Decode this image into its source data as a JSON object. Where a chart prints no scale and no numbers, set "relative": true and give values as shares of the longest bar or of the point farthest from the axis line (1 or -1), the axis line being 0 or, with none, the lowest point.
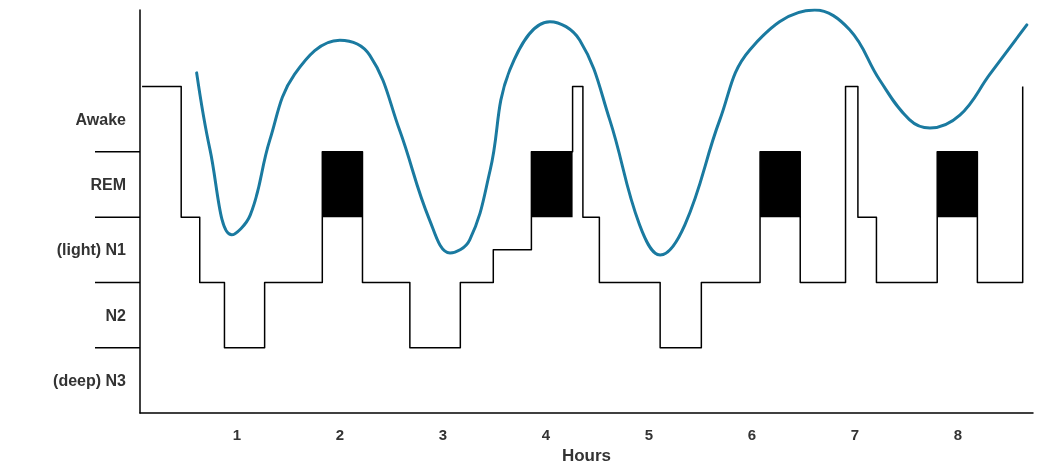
{
  "chart_data": {
    "type": "step",
    "xlabel": "Hours",
    "relative": true,
    "xlim": [
      0.06,
      8.73
    ],
    "xticks": [
      1,
      2,
      3,
      4,
      5,
      6,
      7,
      8
    ],
    "annotations": [
      "(deep) N3",
      "N2",
      "(light) N1",
      "REM",
      "Awake"
    ],
    "bands": [
      {
        "axis": "x",
        "from": 1.83,
        "to": 2.22,
        "color": "#000000"
      },
      {
        "axis": "x",
        "from": 3.86,
        "to": 4.26,
        "color": "#000000"
      },
      {
        "axis": "x",
        "from": 6.08,
        "to": 6.47,
        "color": "#000000"
      },
      {
        "axis": "x",
        "from": 7.8,
        "to": 8.19,
        "color": "#000000"
      }
    ],
    "grid": false,
    "line_style": "solid",
    "series": [
      {
        "color": "#000000",
        "x": [
          0.08,
          0.46,
          0.64,
          0.88,
          1.27,
          1.83,
          2.22,
          2.68,
          3.17,
          3.49,
          3.86,
          4.26,
          4.36,
          4.52,
          5.11,
          5.51,
          6.08,
          6.47,
          6.91,
          7.03,
          7.21,
          7.8,
          8.19,
          8.63
        ],
        "values": [
          0.81,
          0.486,
          0.324,
          0.162,
          0.324,
          0.648,
          0.324,
          0.162,
          0.324,
          0.405,
          0.648,
          0.81,
          0.486,
          0.324,
          0.162,
          0.324,
          0.648,
          0.324,
          0.81,
          0.486,
          0.324,
          0.648,
          0.324,
          0.81
        ]
      },
      {
        "type": "line",
        "color": "#1a7aa0",
        "x": [
          0.61,
          0.74,
          0.95,
          1.13,
          1.32,
          1.56,
          2.0,
          2.29,
          2.58,
          2.87,
          3.07,
          3.26,
          3.46,
          3.65,
          4.04,
          4.33,
          4.62,
          4.91,
          5.11,
          5.35,
          5.69,
          5.98,
          6.61,
          6.95,
          7.24,
          7.53,
          7.73,
          8.02,
          8.31,
          8.67
        ],
        "values": [
          0.844,
          0.653,
          0.442,
          0.491,
          0.677,
          0.84,
          0.925,
          0.888,
          0.702,
          0.48,
          0.397,
          0.429,
          0.603,
          0.851,
          0.971,
          0.925,
          0.728,
          0.467,
          0.392,
          0.467,
          0.728,
          0.901,
          1,
          0.951,
          0.827,
          0.728,
          0.707,
          0.739,
          0.84,
          0.963
        ]
      }
    ]
  }
}
